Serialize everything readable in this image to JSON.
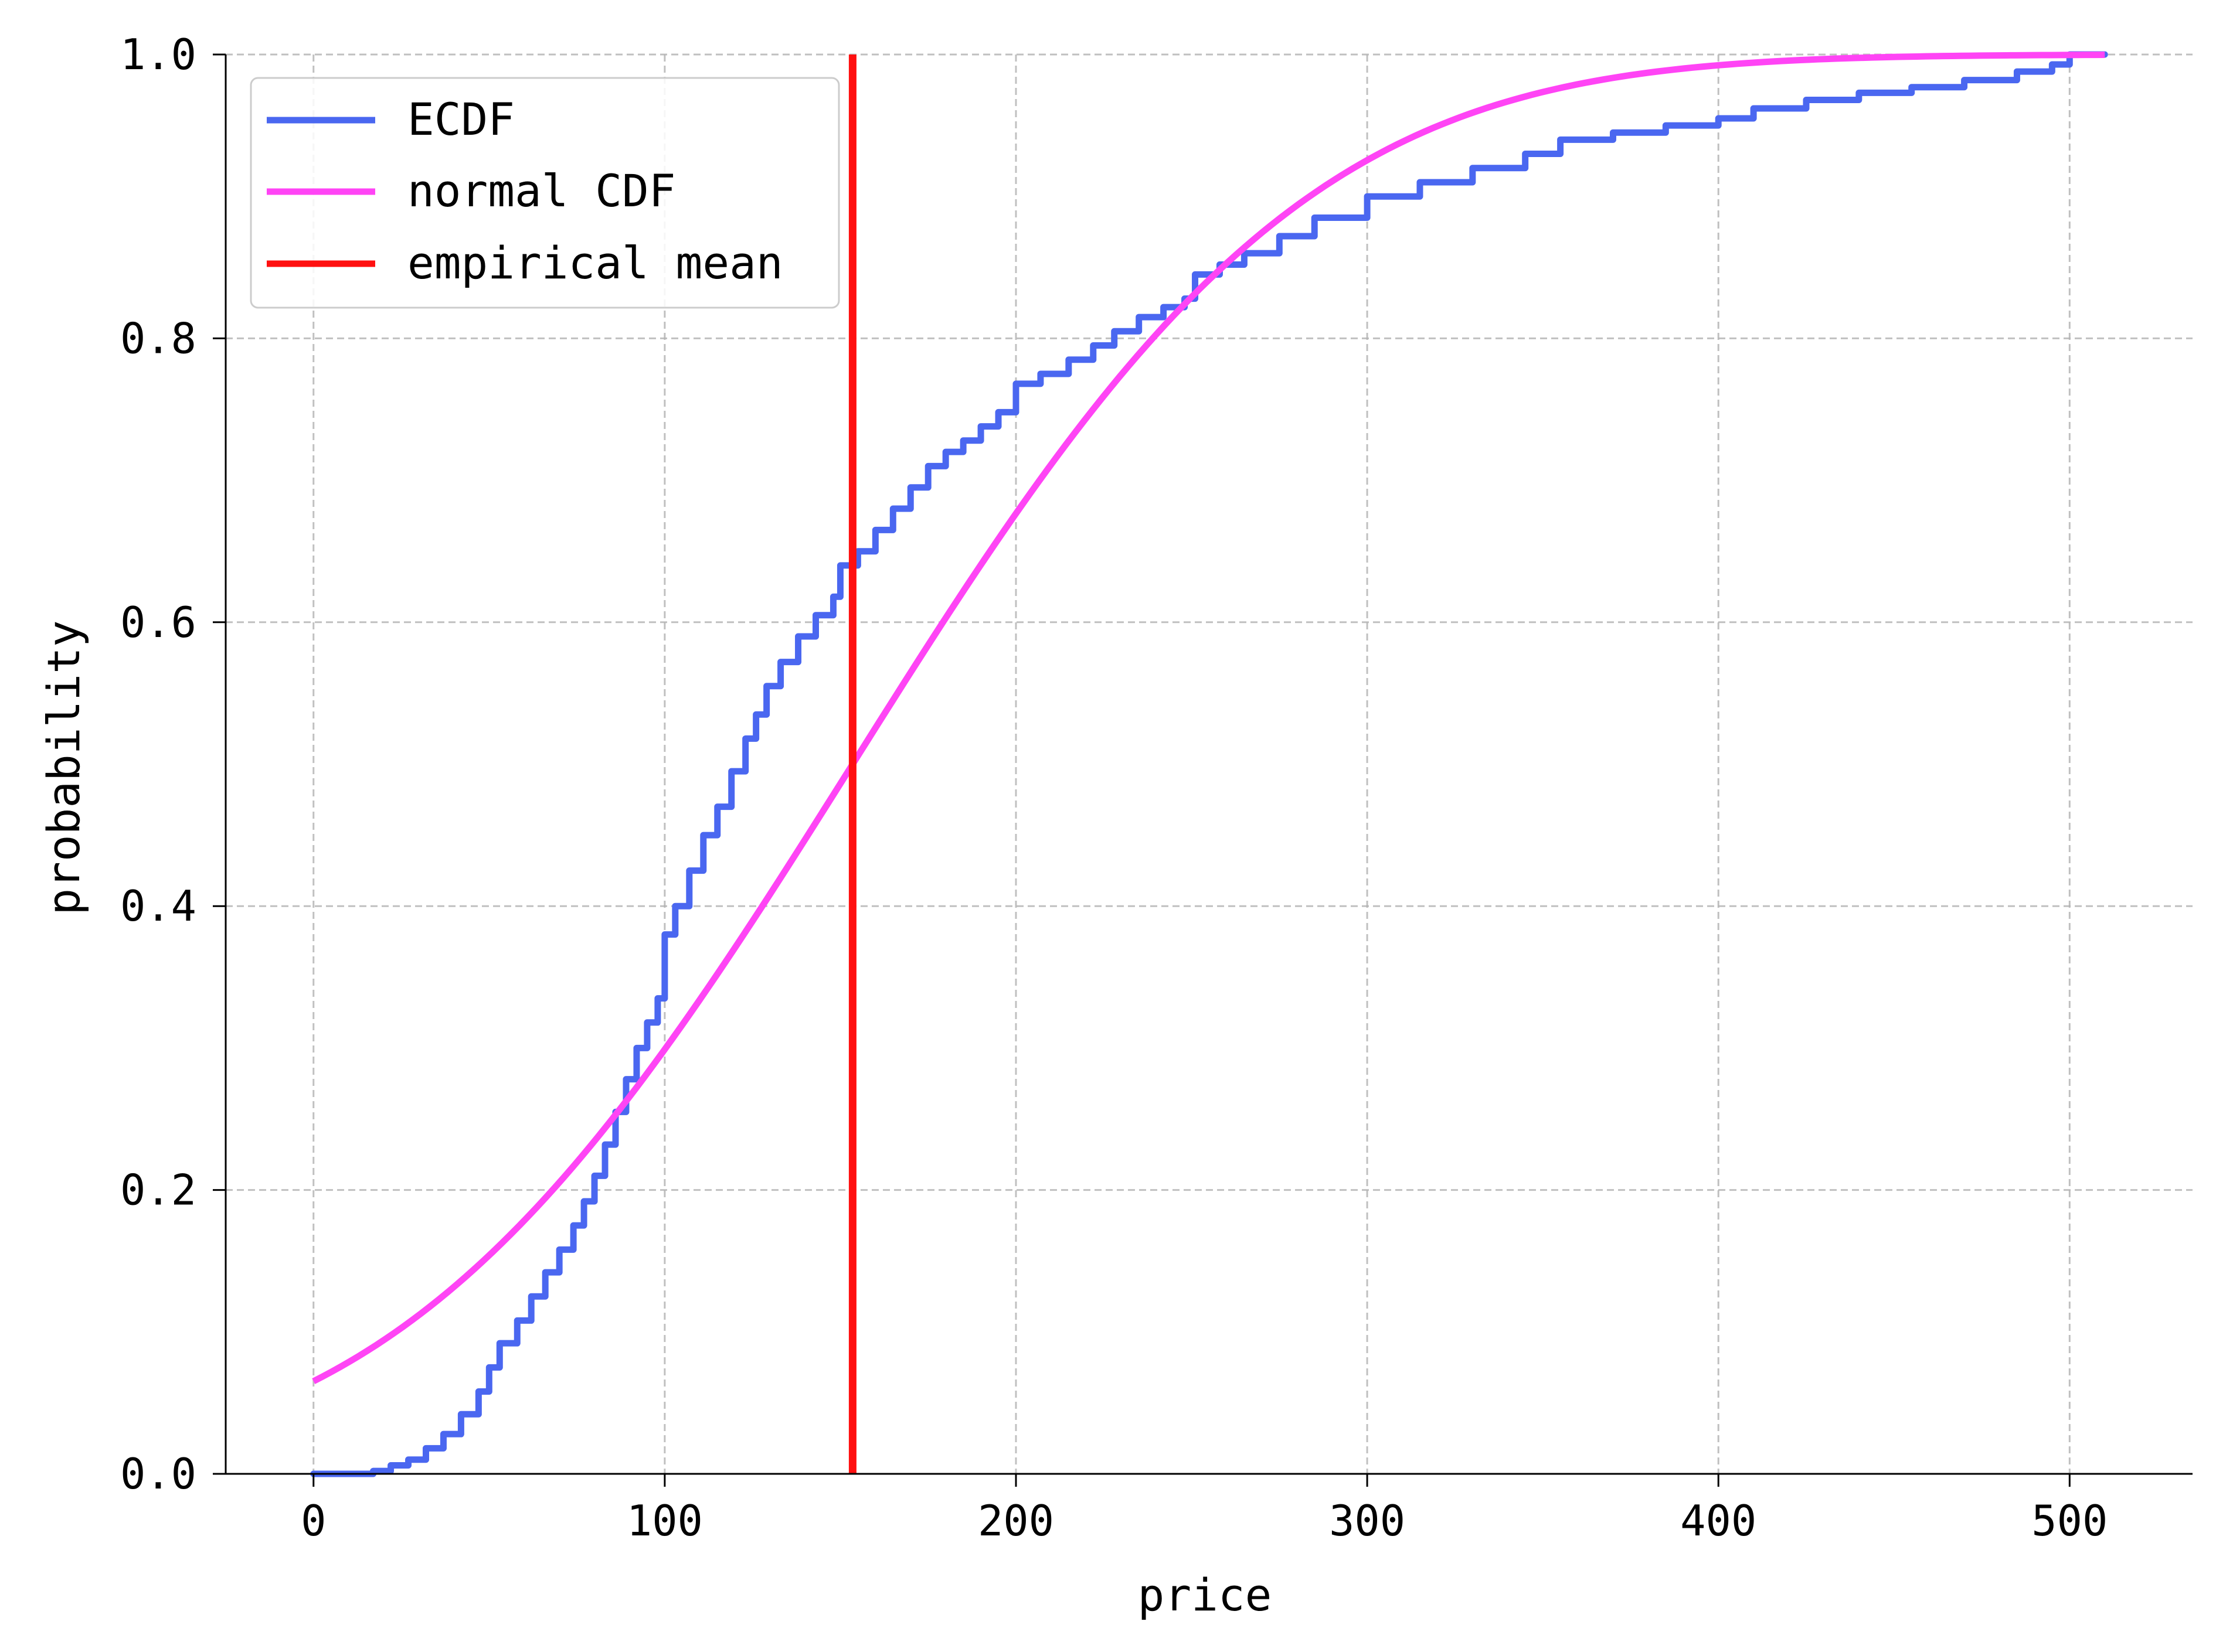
{
  "chart_data": {
    "type": "line",
    "xlabel": "price",
    "ylabel": "probability",
    "xlim": [
      -25,
      535
    ],
    "ylim": [
      0,
      1
    ],
    "xticks": [
      0,
      100,
      200,
      300,
      400,
      500
    ],
    "yticks": [
      0.0,
      0.2,
      0.4,
      0.6,
      0.8,
      1.0
    ],
    "xtick_labels": [
      "0",
      "100",
      "200",
      "300",
      "400",
      "500"
    ],
    "ytick_labels": [
      "0.0",
      "0.2",
      "0.4",
      "0.6",
      "0.8",
      "1.0"
    ],
    "grid": true,
    "legend_position": "top-left",
    "series": [
      {
        "name": "ECDF",
        "color": "#4a67f0",
        "kind": "step",
        "points": [
          [
            0,
            0.0
          ],
          [
            17,
            0.002
          ],
          [
            22,
            0.006
          ],
          [
            27,
            0.01
          ],
          [
            32,
            0.018
          ],
          [
            37,
            0.028
          ],
          [
            42,
            0.042
          ],
          [
            47,
            0.058
          ],
          [
            50,
            0.075
          ],
          [
            53,
            0.092
          ],
          [
            58,
            0.108
          ],
          [
            62,
            0.125
          ],
          [
            66,
            0.142
          ],
          [
            70,
            0.158
          ],
          [
            74,
            0.175
          ],
          [
            77,
            0.192
          ],
          [
            80,
            0.21
          ],
          [
            83,
            0.232
          ],
          [
            86,
            0.255
          ],
          [
            89,
            0.278
          ],
          [
            92,
            0.3
          ],
          [
            95,
            0.318
          ],
          [
            98,
            0.335
          ],
          [
            100,
            0.38
          ],
          [
            103,
            0.4
          ],
          [
            107,
            0.425
          ],
          [
            111,
            0.45
          ],
          [
            115,
            0.47
          ],
          [
            119,
            0.495
          ],
          [
            123,
            0.518
          ],
          [
            126,
            0.535
          ],
          [
            129,
            0.555
          ],
          [
            133,
            0.572
          ],
          [
            138,
            0.59
          ],
          [
            143,
            0.605
          ],
          [
            148,
            0.618
          ],
          [
            150,
            0.64
          ],
          [
            155,
            0.65
          ],
          [
            160,
            0.665
          ],
          [
            165,
            0.68
          ],
          [
            170,
            0.695
          ],
          [
            175,
            0.71
          ],
          [
            180,
            0.72
          ],
          [
            185,
            0.728
          ],
          [
            190,
            0.738
          ],
          [
            195,
            0.748
          ],
          [
            200,
            0.768
          ],
          [
            207,
            0.775
          ],
          [
            215,
            0.785
          ],
          [
            222,
            0.795
          ],
          [
            228,
            0.805
          ],
          [
            235,
            0.815
          ],
          [
            242,
            0.822
          ],
          [
            248,
            0.828
          ],
          [
            251,
            0.845
          ],
          [
            258,
            0.852
          ],
          [
            265,
            0.86
          ],
          [
            275,
            0.872
          ],
          [
            285,
            0.885
          ],
          [
            300,
            0.9
          ],
          [
            315,
            0.91
          ],
          [
            330,
            0.92
          ],
          [
            345,
            0.93
          ],
          [
            355,
            0.94
          ],
          [
            370,
            0.945
          ],
          [
            385,
            0.95
          ],
          [
            400,
            0.955
          ],
          [
            410,
            0.962
          ],
          [
            425,
            0.968
          ],
          [
            440,
            0.973
          ],
          [
            455,
            0.977
          ],
          [
            470,
            0.982
          ],
          [
            485,
            0.988
          ],
          [
            495,
            0.993
          ],
          [
            500,
            1.0
          ],
          [
            510,
            1.0
          ]
        ]
      },
      {
        "name": "normal CDF",
        "color": "#ff44f5",
        "kind": "normal_cdf",
        "mean": 153.5,
        "std": 101.5,
        "x_range": [
          0,
          510
        ]
      },
      {
        "name": "empirical mean",
        "color": "#ff1010",
        "kind": "vline",
        "x": 153.5
      }
    ]
  }
}
